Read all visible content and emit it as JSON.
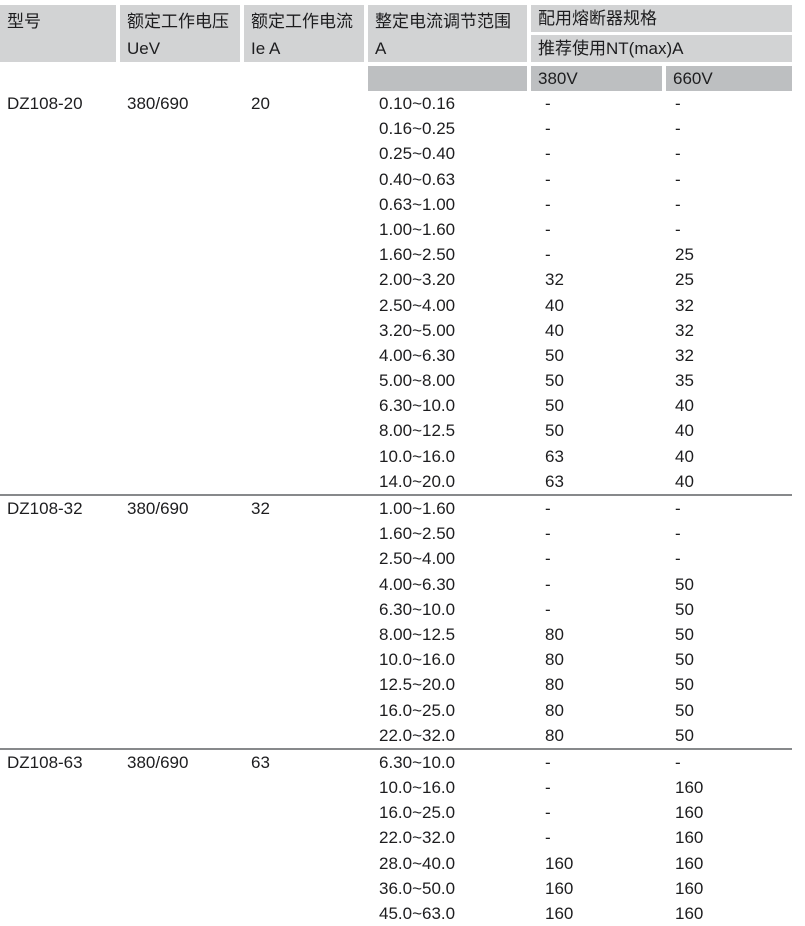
{
  "colors": {
    "header_bg": "#d2d3d4",
    "subheader_bg": "#bdbfc1",
    "divider": "#87898b",
    "text": "#1d1d1f"
  },
  "table": {
    "headers": {
      "model": {
        "line1": "型号",
        "line2": ""
      },
      "voltage": {
        "line1": "额定工作电压",
        "line2": "UeV"
      },
      "current": {
        "line1": "额定工作电流",
        "line2": "Ie A"
      },
      "range": {
        "line1": "整定电流调节范围",
        "line2": "A"
      },
      "fuse": {
        "title": "配用熔断器规格",
        "subtitle": "推荐使用NT(max)A",
        "col_380": "380V",
        "col_660": "660V"
      }
    },
    "sections": [
      {
        "model": "DZ108-20",
        "voltage": "380/690",
        "current": "20",
        "rows": [
          [
            "0.10~0.16",
            "-",
            "-"
          ],
          [
            "0.16~0.25",
            "-",
            "-"
          ],
          [
            "0.25~0.40",
            "-",
            "-"
          ],
          [
            "0.40~0.63",
            "-",
            "-"
          ],
          [
            "0.63~1.00",
            "-",
            "-"
          ],
          [
            "1.00~1.60",
            "-",
            "-"
          ],
          [
            "1.60~2.50",
            "-",
            "25"
          ],
          [
            "2.00~3.20",
            "32",
            "25"
          ],
          [
            "2.50~4.00",
            "40",
            "32"
          ],
          [
            "3.20~5.00",
            "40",
            "32"
          ],
          [
            "4.00~6.30",
            "50",
            "32"
          ],
          [
            "5.00~8.00",
            "50",
            "35"
          ],
          [
            "6.30~10.0",
            "50",
            "40"
          ],
          [
            "8.00~12.5",
            "50",
            "40"
          ],
          [
            "10.0~16.0",
            "63",
            "40"
          ],
          [
            "14.0~20.0",
            "63",
            "40"
          ]
        ]
      },
      {
        "model": "DZ108-32",
        "voltage": "380/690",
        "current": "32",
        "rows": [
          [
            "1.00~1.60",
            "-",
            "-"
          ],
          [
            "1.60~2.50",
            "-",
            "-"
          ],
          [
            "2.50~4.00",
            "-",
            "-"
          ],
          [
            "4.00~6.30",
            "-",
            "50"
          ],
          [
            "6.30~10.0",
            "-",
            "50"
          ],
          [
            "8.00~12.5",
            "80",
            "50"
          ],
          [
            "10.0~16.0",
            "80",
            "50"
          ],
          [
            "12.5~20.0",
            "80",
            "50"
          ],
          [
            "16.0~25.0",
            "80",
            "50"
          ],
          [
            "22.0~32.0",
            "80",
            "50"
          ]
        ]
      },
      {
        "model": "DZ108-63",
        "voltage": "380/690",
        "current": "63",
        "rows": [
          [
            "6.30~10.0",
            "-",
            "-"
          ],
          [
            "10.0~16.0",
            "-",
            "160"
          ],
          [
            "16.0~25.0",
            "-",
            "160"
          ],
          [
            "22.0~32.0",
            "-",
            "160"
          ],
          [
            "28.0~40.0",
            "160",
            "160"
          ],
          [
            "36.0~50.0",
            "160",
            "160"
          ],
          [
            "45.0~63.0",
            "160",
            "160"
          ]
        ]
      }
    ]
  }
}
